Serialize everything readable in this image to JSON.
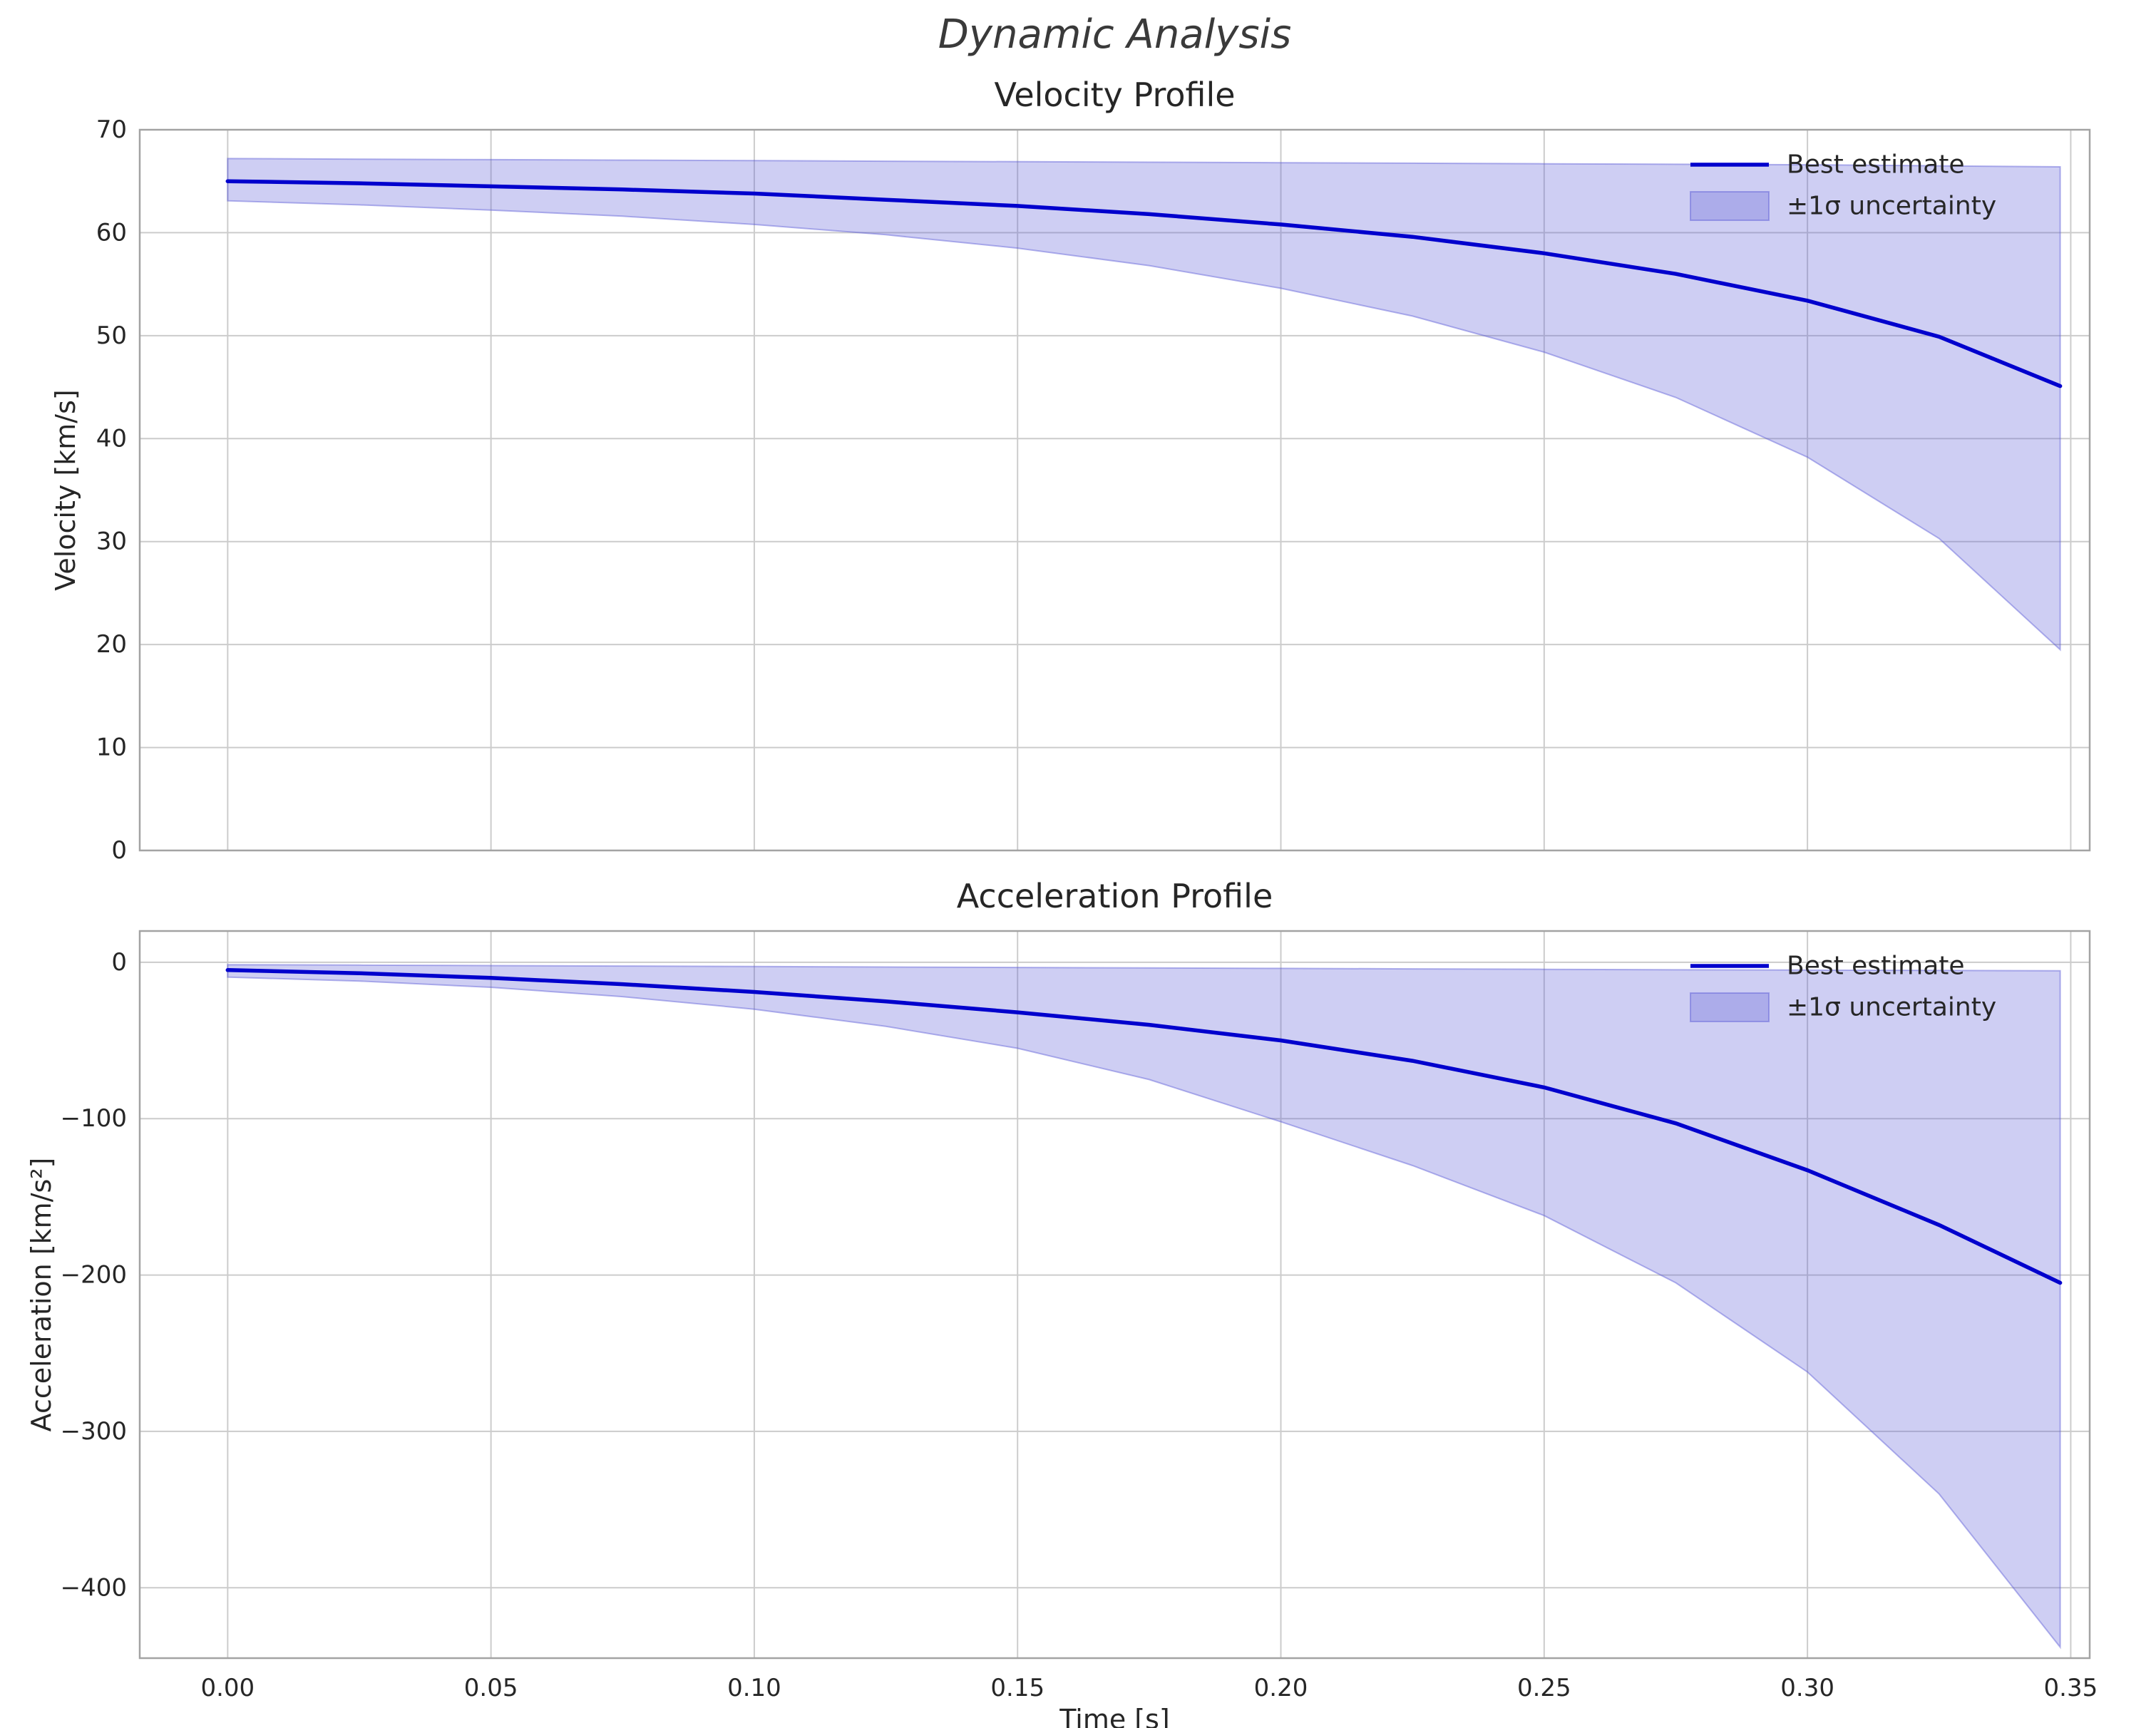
{
  "figure": {
    "suptitle": "Dynamic Analysis"
  },
  "chart_data": [
    {
      "type": "line",
      "title": "Velocity Profile",
      "xlabel": "",
      "ylabel": "Velocity [km/s]",
      "xlim": [
        -0.0167,
        0.3536
      ],
      "ylim": [
        0,
        70
      ],
      "xticks": [
        0.0,
        0.05,
        0.1,
        0.15,
        0.2,
        0.25,
        0.3,
        0.35
      ],
      "yticks": [
        0,
        10,
        20,
        30,
        40,
        50,
        60,
        70
      ],
      "grid": true,
      "legend_position": "upper right",
      "legend": [
        "Best estimate",
        "±1σ uncertainty"
      ],
      "show_xticklabels": false,
      "colors": {
        "line": "#0000cd",
        "band_fill": "rgba(92,92,214,0.30)",
        "band_edge": "rgba(92,92,214,0.45)"
      },
      "x": [
        0,
        0.025,
        0.05,
        0.075,
        0.1,
        0.125,
        0.15,
        0.175,
        0.2,
        0.225,
        0.25,
        0.275,
        0.3,
        0.325,
        0.348
      ],
      "series": [
        {
          "name": "Best estimate",
          "values": [
            65.0,
            64.8,
            64.5,
            64.2,
            63.8,
            63.2,
            62.6,
            61.8,
            60.8,
            59.6,
            58.0,
            56.0,
            53.4,
            49.9,
            45.1
          ]
        }
      ],
      "band": {
        "name": "±1σ uncertainty",
        "upper": [
          67.2,
          67.15,
          67.1,
          67.05,
          67.0,
          66.95,
          66.9,
          66.85,
          66.8,
          66.75,
          66.7,
          66.65,
          66.6,
          66.5,
          66.4
        ],
        "lower": [
          63.1,
          62.7,
          62.2,
          61.6,
          60.8,
          59.8,
          58.5,
          56.8,
          54.6,
          51.9,
          48.4,
          44.0,
          38.2,
          30.3,
          19.5
        ]
      }
    },
    {
      "type": "line",
      "title": "Acceleration Profile",
      "xlabel": "Time [s]",
      "ylabel": "Acceleration [km/s²]",
      "xlim": [
        -0.0167,
        0.3536
      ],
      "ylim": [
        -445,
        20
      ],
      "xticks": [
        0.0,
        0.05,
        0.1,
        0.15,
        0.2,
        0.25,
        0.3,
        0.35
      ],
      "yticks": [
        0,
        -100,
        -200,
        -300,
        -400
      ],
      "grid": true,
      "legend_position": "upper right",
      "legend": [
        "Best estimate",
        "±1σ uncertainty"
      ],
      "show_xticklabels": true,
      "colors": {
        "line": "#0000cd",
        "band_fill": "rgba(92,92,214,0.30)",
        "band_edge": "rgba(92,92,214,0.45)"
      },
      "x": [
        0,
        0.025,
        0.05,
        0.075,
        0.1,
        0.125,
        0.15,
        0.175,
        0.2,
        0.225,
        0.25,
        0.275,
        0.3,
        0.325,
        0.348
      ],
      "series": [
        {
          "name": "Best estimate",
          "values": [
            -5,
            -7,
            -10,
            -14,
            -19,
            -25,
            -32,
            -40,
            -50,
            -63,
            -80,
            -103,
            -133,
            -168,
            -205
          ]
        }
      ],
      "band": {
        "name": "±1σ uncertainty",
        "upper": [
          -1.5,
          -1.8,
          -2.1,
          -2.4,
          -2.7,
          -3.0,
          -3.3,
          -3.6,
          -3.9,
          -4.2,
          -4.5,
          -4.8,
          -5.0,
          -5.2,
          -5.4
        ],
        "lower": [
          -9.5,
          -12,
          -16,
          -22,
          -30,
          -41,
          -55,
          -75,
          -102,
          -130,
          -162,
          -205,
          -262,
          -340,
          -438
        ]
      }
    }
  ]
}
